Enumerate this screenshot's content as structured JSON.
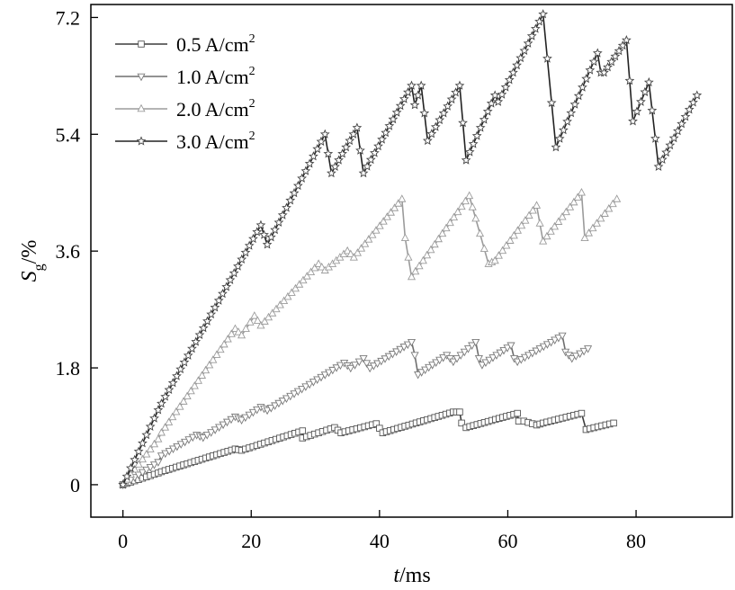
{
  "chart_data": {
    "type": "line",
    "title": "",
    "xlabel": {
      "italic": "t",
      "rest": "/ms"
    },
    "ylabel": {
      "italic": "S",
      "sub": "g",
      "rest": "/%"
    },
    "xlim": [
      -5,
      95
    ],
    "ylim": [
      -0.5,
      7.4
    ],
    "xticks": [
      0,
      20,
      40,
      60,
      80
    ],
    "yticks": [
      0,
      1.8,
      3.6,
      5.4,
      7.2
    ],
    "ytick_labels": [
      "0",
      "1.8",
      "3.6",
      "5.4",
      "7.2"
    ],
    "grid": false,
    "legend_position": "top-left",
    "series": [
      {
        "name": "0.5 A/cm",
        "name_sup": "2",
        "marker": "square",
        "line_color": "#3c3c3c",
        "marker_color": "#555555",
        "x": [
          0,
          5.5,
          6,
          17.5,
          18.5,
          28,
          28,
          33,
          34,
          39.5,
          40.5,
          51.5,
          52.5,
          52.8,
          53.5,
          61.5,
          61.7,
          62.5,
          64.5,
          65.5,
          71.5,
          72.2,
          76.5
        ],
        "y": [
          0,
          0.18,
          0.2,
          0.55,
          0.53,
          0.83,
          0.72,
          0.88,
          0.8,
          0.94,
          0.8,
          1.12,
          1.12,
          0.95,
          0.88,
          1.1,
          0.98,
          0.98,
          0.92,
          0.95,
          1.1,
          0.85,
          0.95
        ]
      },
      {
        "name": "1.0 A/cm",
        "name_sup": "2",
        "marker": "triangle-down",
        "line_color": "#6e6e6e",
        "marker_color": "#7a7a7a",
        "x": [
          0,
          5.5,
          6,
          11.5,
          12.5,
          17.5,
          18.5,
          21.5,
          22.5,
          34.5,
          35.5,
          37.5,
          38.5,
          45,
          45.5,
          46,
          50.5,
          51.5,
          55,
          55.5,
          56,
          60.5,
          61,
          61.5,
          68.5,
          69,
          70,
          72.5
        ],
        "y": [
          0,
          0.35,
          0.45,
          0.77,
          0.73,
          1.05,
          1.0,
          1.2,
          1.15,
          1.88,
          1.8,
          1.95,
          1.8,
          2.2,
          2.0,
          1.7,
          2.0,
          1.9,
          2.2,
          1.95,
          1.85,
          2.15,
          1.95,
          1.9,
          2.3,
          2.05,
          1.95,
          2.1
        ]
      },
      {
        "name": "2.0 A/cm",
        "name_sup": "2",
        "marker": "triangle-up",
        "line_color": "#9b9b9b",
        "marker_color": "#9b9b9b",
        "x": [
          0,
          5.5,
          6,
          17.5,
          18.5,
          20.5,
          21.5,
          30.5,
          31.5,
          35,
          36,
          43.5,
          44,
          45,
          54,
          55,
          57,
          58,
          64.5,
          65.5,
          71.5,
          72,
          77
        ],
        "y": [
          0,
          0.7,
          0.8,
          2.4,
          2.3,
          2.6,
          2.45,
          3.4,
          3.3,
          3.6,
          3.5,
          4.4,
          3.8,
          3.2,
          4.45,
          4.1,
          3.4,
          3.45,
          4.3,
          3.75,
          4.5,
          3.8,
          4.4
        ]
      },
      {
        "name": "3.0 A/cm",
        "name_sup": "2",
        "marker": "star",
        "line_color": "#222222",
        "marker_color": "#444444",
        "x": [
          0,
          5.5,
          6,
          21.5,
          22.5,
          31.5,
          32.5,
          36.5,
          37.5,
          45,
          45.5,
          46.5,
          47.5,
          52.5,
          53.5,
          58,
          58.5,
          65.5,
          67.5,
          74,
          74.5,
          75,
          78.5,
          79.5,
          82,
          83.5,
          89.5
        ],
        "y": [
          0,
          1.15,
          1.25,
          4.0,
          3.7,
          5.4,
          4.8,
          5.5,
          4.8,
          6.15,
          5.85,
          6.15,
          5.3,
          6.15,
          5.0,
          6.0,
          5.9,
          7.25,
          5.2,
          6.65,
          6.35,
          6.35,
          6.85,
          5.6,
          6.2,
          4.9,
          6.0
        ]
      }
    ]
  }
}
